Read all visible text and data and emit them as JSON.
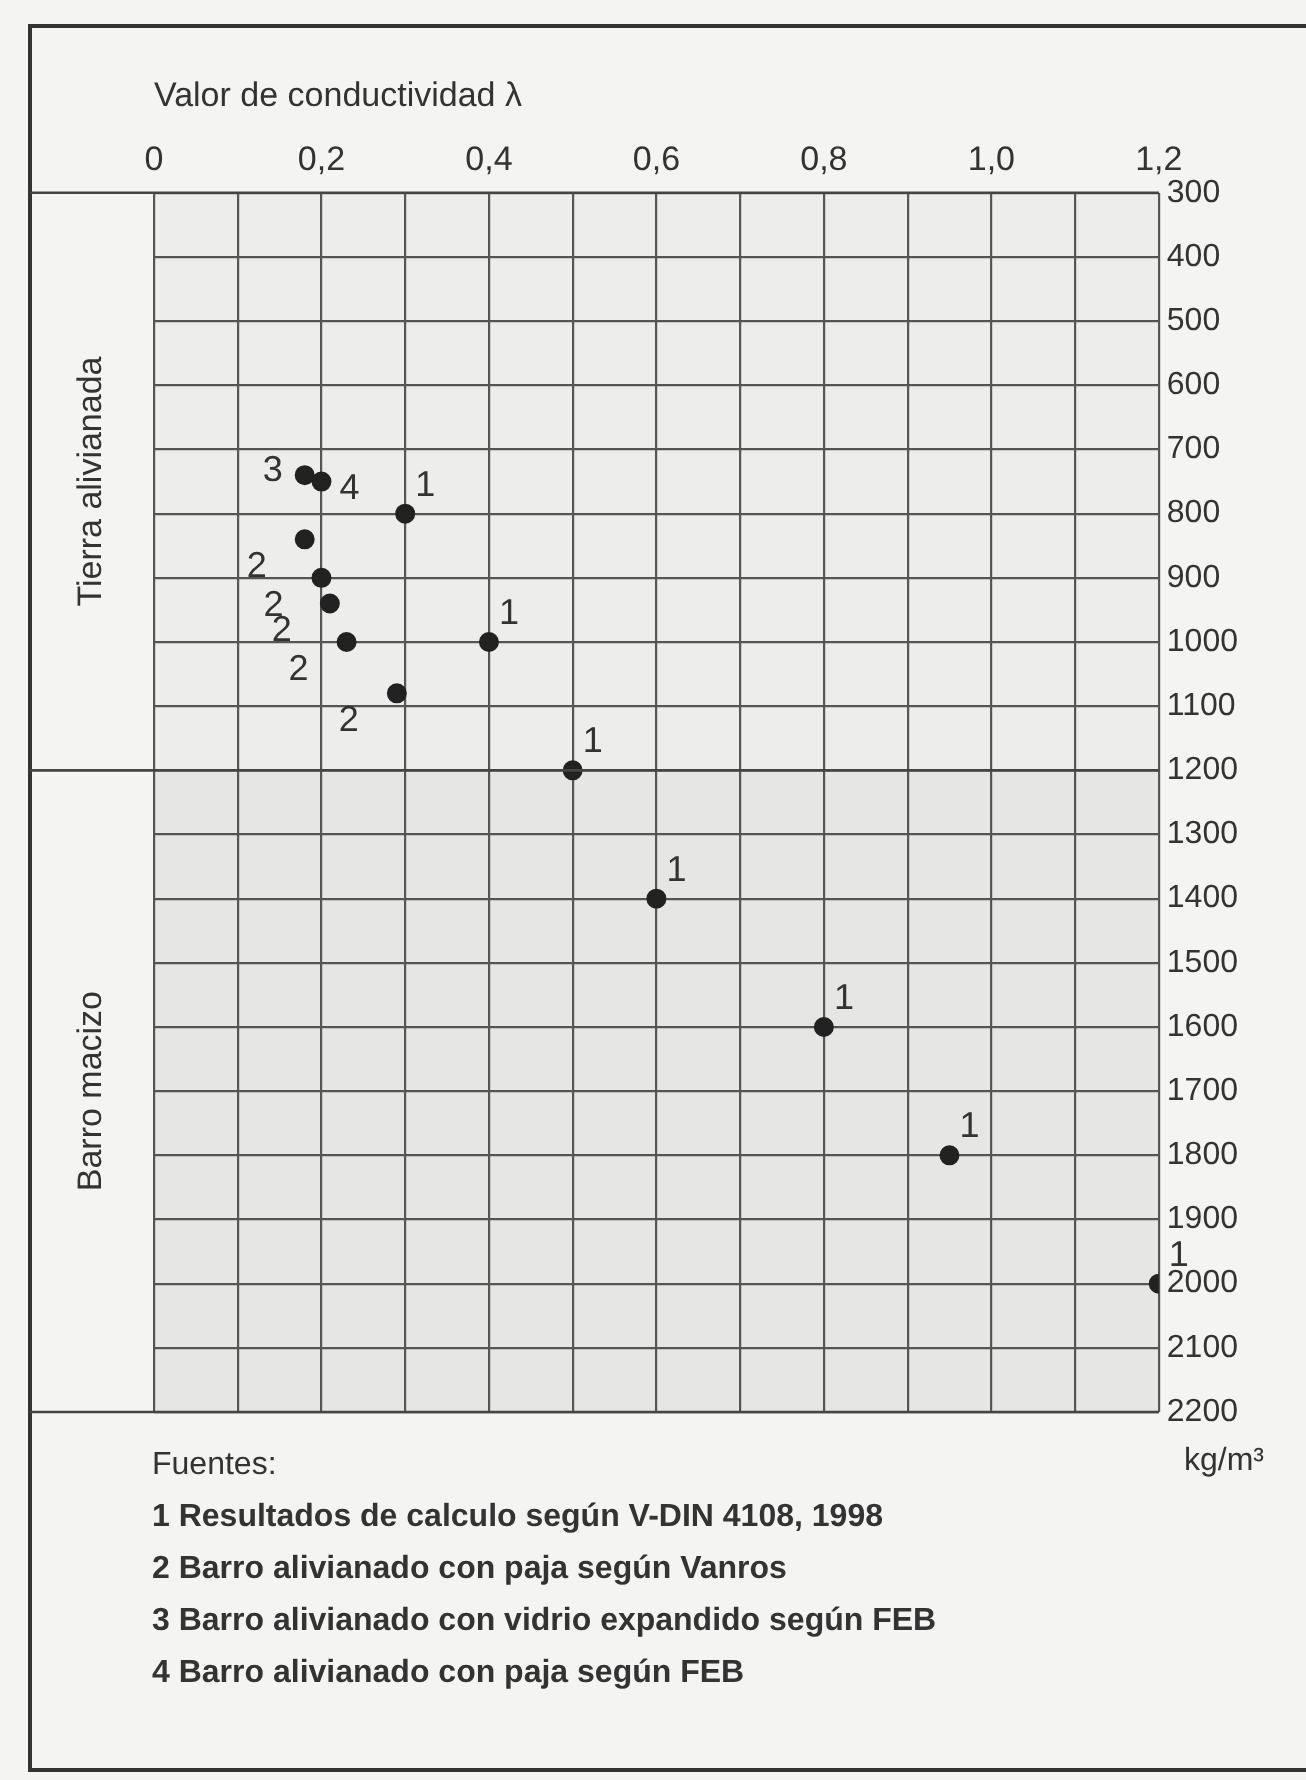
{
  "chart_data": {
    "type": "scatter",
    "xlabel": "Valor de conductividad λ",
    "ylabel": "kg/m³",
    "xlim": [
      0,
      1.2
    ],
    "xticks": [
      0,
      {
        "value": 0.1,
        "label": null
      },
      {
        "value": 0.2,
        "label": "0,2"
      },
      {
        "value": 0.3,
        "label": null
      },
      {
        "value": 0.4,
        "label": "0,4"
      },
      {
        "value": 0.5,
        "label": null
      },
      {
        "value": 0.6,
        "label": "0,6"
      },
      {
        "value": 0.7,
        "label": null
      },
      {
        "value": 0.8,
        "label": "0,8"
      },
      {
        "value": 0.9,
        "label": null
      },
      {
        "value": 1.0,
        "label": "1,0"
      },
      {
        "value": 1.1,
        "label": null
      },
      {
        "value": 1.2,
        "label": "1,2"
      }
    ],
    "ylim": [
      2200,
      300
    ],
    "yticks": [
      300,
      400,
      500,
      600,
      700,
      800,
      900,
      1000,
      1100,
      1200,
      1300,
      1400,
      1500,
      1600,
      1700,
      1800,
      1900,
      2000,
      2100,
      2200
    ],
    "grid": true,
    "legend": false,
    "marker": "circle",
    "series": [
      {
        "name": "1",
        "color": "#222222",
        "x": [
          0.3,
          0.4,
          0.5,
          0.6,
          0.8,
          0.95,
          1.2
        ],
        "values": [
          800,
          1000,
          1200,
          1400,
          1600,
          1800,
          2000
        ]
      },
      {
        "name": "2",
        "color": "#222222",
        "x": [
          0.18,
          0.2,
          0.21,
          0.23,
          0.29
        ],
        "values": [
          840,
          900,
          940,
          1000,
          1080
        ]
      },
      {
        "name": "3",
        "color": "#222222",
        "x": [
          0.18
        ],
        "values": [
          740
        ]
      },
      {
        "name": "4",
        "color": "#222222",
        "x": [
          0.2
        ],
        "values": [
          750
        ]
      }
    ],
    "bands": [
      {
        "axis": "y",
        "from": 300,
        "to": 1200,
        "label": "Tierra alivianada",
        "color": "#ededeb"
      },
      {
        "axis": "y",
        "from": 1200,
        "to": 2200,
        "label": "Barro macizo",
        "color": "#e6e6e4"
      }
    ],
    "annotations": [
      "Fuentes:",
      "1  Resultados de calculo según V-DIN 4108, 1998",
      "2  Barro alivianado con paja según Vanros",
      "3  Barro alivianado con vidrio expandido según FEB",
      "4  Barro alivianado con paja según FEB"
    ]
  }
}
